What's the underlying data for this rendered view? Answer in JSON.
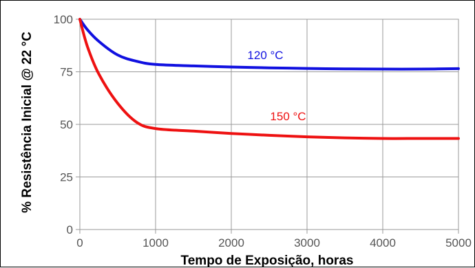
{
  "chart_data": {
    "type": "line",
    "xlabel": "Tempo de Exposição, horas",
    "ylabel": "% Resistência Inicial @ 22 °C",
    "xlim": [
      0,
      5000
    ],
    "ylim": [
      0,
      100
    ],
    "x_ticks": [
      "0",
      "1000",
      "2000",
      "3000",
      "4000",
      "5000"
    ],
    "y_ticks": [
      "0",
      "25",
      "50",
      "75",
      "100"
    ],
    "grid": true,
    "series": [
      {
        "name": "120 °C",
        "color": "#1010e0",
        "x": [
          0,
          100,
          250,
          500,
          750,
          1000,
          1500,
          2000,
          2500,
          3000,
          3500,
          4000,
          4500,
          5000
        ],
        "y": [
          100,
          95,
          89.5,
          83,
          80,
          78.5,
          77.8,
          77.3,
          76.9,
          76.6,
          76.4,
          76.3,
          76.3,
          76.5
        ]
      },
      {
        "name": "150 °C",
        "color": "#ee1111",
        "x": [
          0,
          100,
          250,
          500,
          750,
          1000,
          1500,
          2000,
          2500,
          3000,
          3500,
          4000,
          4500,
          5000
        ],
        "y": [
          100,
          87,
          74,
          60,
          51,
          48,
          46.8,
          45.7,
          44.8,
          44.1,
          43.6,
          43.3,
          43.3,
          43.3
        ]
      }
    ]
  }
}
